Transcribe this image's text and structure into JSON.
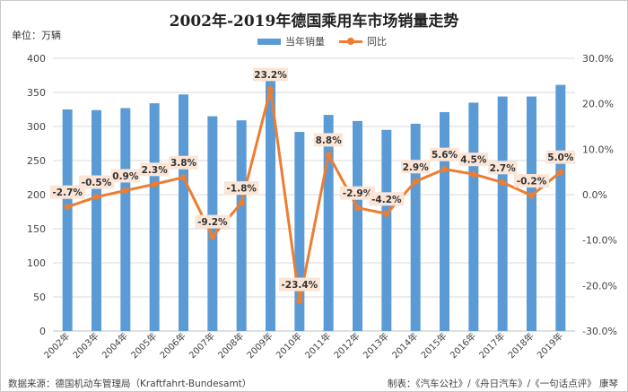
{
  "chart_data": {
    "type": "bar",
    "title": "2002年-2019年德国乘用车市场销量走势",
    "unit_label": "单位：万辆",
    "categories": [
      "2002年",
      "2003年",
      "2004年",
      "2005年",
      "2006年",
      "2007年",
      "2008年",
      "2009年",
      "2010年",
      "2011年",
      "2012年",
      "2013年",
      "2014年",
      "2015年",
      "2016年",
      "2017年",
      "2018年",
      "2019年"
    ],
    "series": [
      {
        "name": "当年销量",
        "type": "bar",
        "axis": "left",
        "color": "#5b9bd5",
        "values": [
          325,
          324,
          327,
          334,
          347,
          315,
          309,
          380,
          292,
          317,
          308,
          295,
          304,
          321,
          335,
          344,
          344,
          361
        ]
      },
      {
        "name": "同比",
        "type": "line",
        "axis": "right",
        "color": "#ed7d31",
        "values": [
          -2.7,
          -0.5,
          0.9,
          2.3,
          3.8,
          -9.2,
          -1.8,
          23.2,
          -23.4,
          8.8,
          -2.9,
          -4.2,
          2.9,
          5.6,
          4.5,
          2.7,
          -0.2,
          5.0
        ],
        "labels": [
          "-2.7%",
          "-0.5%",
          "0.9%",
          "2.3%",
          "3.8%",
          "-9.2%",
          "-1.8%",
          "23.2%",
          "-23.4%",
          "8.8%",
          "-2.9%",
          "-4.2%",
          "2.9%",
          "5.6%",
          "4.5%",
          "2.7%",
          "-0.2%",
          "5.0%"
        ]
      }
    ],
    "y_left": {
      "min": 0,
      "max": 400,
      "ticks": [
        "0",
        "50",
        "100",
        "150",
        "200",
        "250",
        "300",
        "350",
        "400"
      ]
    },
    "y_right": {
      "min": -30,
      "max": 30,
      "ticks": [
        "-30.0%",
        "-20.0%",
        "-10.0%",
        "0.0%",
        "10.0%",
        "20.0%",
        "30.0%"
      ]
    },
    "grid": true,
    "legend_position": "top"
  },
  "footer": {
    "source": "数据来源：德国机动车管理局（Kraftfahrt-Bundesamt）",
    "credit": "制表：《汽车公社》/《舟日汽车》/《一句话点评》 康琴"
  }
}
